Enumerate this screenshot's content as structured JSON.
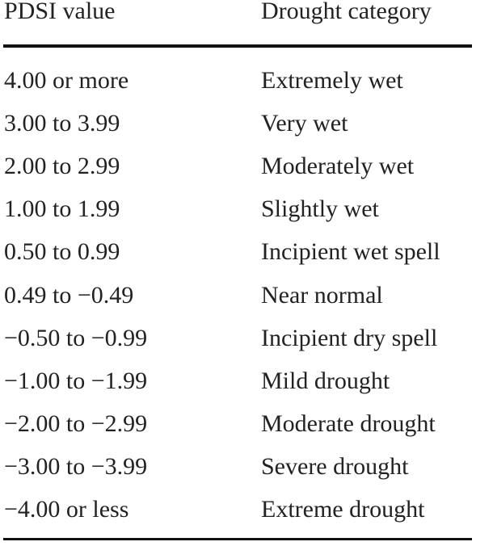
{
  "table": {
    "header": [
      "PDSI value",
      "Drought category"
    ],
    "rows": [
      [
        "4.00 or more",
        "Extremely wet"
      ],
      [
        "3.00 to 3.99",
        "Very wet"
      ],
      [
        "2.00 to 2.99",
        "Moderately wet"
      ],
      [
        "1.00 to 1.99",
        "Slightly wet"
      ],
      [
        "0.50 to 0.99",
        "Incipient wet spell"
      ],
      [
        "0.49 to −0.49",
        "Near normal"
      ],
      [
        "−0.50 to −0.99",
        "Incipient dry spell"
      ],
      [
        "−1.00 to −1.99",
        "Mild drought"
      ],
      [
        "−2.00 to −2.99",
        "Moderate drought"
      ],
      [
        "−3.00 to −3.99",
        "Severe drought"
      ],
      [
        "−4.00 or less",
        "Extreme drought"
      ]
    ]
  }
}
